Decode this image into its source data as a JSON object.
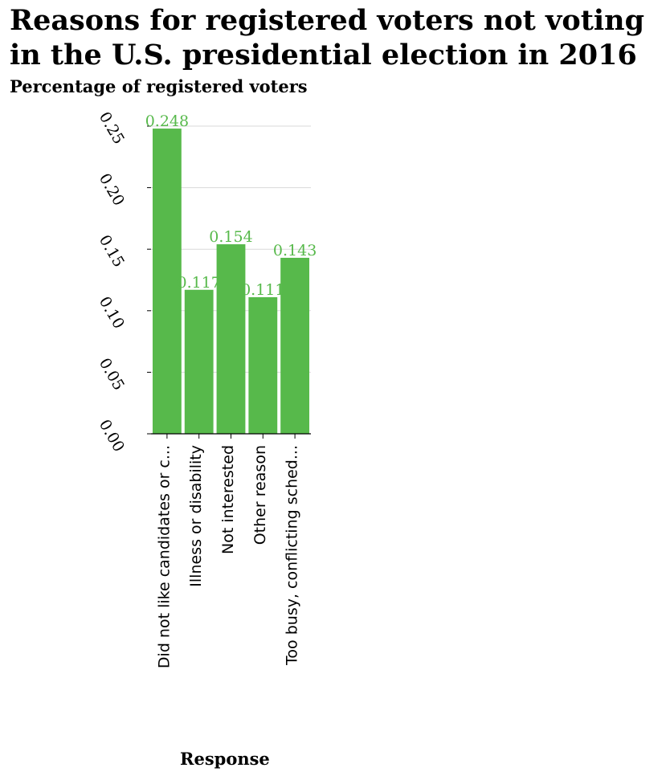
{
  "chart_data": {
    "type": "bar",
    "title_lines": [
      "Reasons for registered voters not voting",
      "in the U.S. presidential election in 2016"
    ],
    "ylabel": "Percentage of registered voters",
    "xlabel": "Response",
    "categories": [
      "Did not like candidates or c...",
      "Illness or disability",
      "Not interested",
      "Other reason",
      "Too busy, conflicting sched..."
    ],
    "values": [
      0.248,
      0.117,
      0.154,
      0.111,
      0.143
    ],
    "value_labels": [
      "0.248",
      "0.117",
      "0.154",
      "0.111",
      "0.143"
    ],
    "ylim": [
      0,
      0.25
    ],
    "yticks": [
      0,
      0.05,
      0.1,
      0.15,
      0.2,
      0.25
    ],
    "ytick_labels": [
      "0.00",
      "0.05",
      "0.10",
      "0.15",
      "0.20",
      "0.25"
    ],
    "grid": true,
    "bar_color": "#57b94b",
    "label_color": "#57b94b"
  }
}
